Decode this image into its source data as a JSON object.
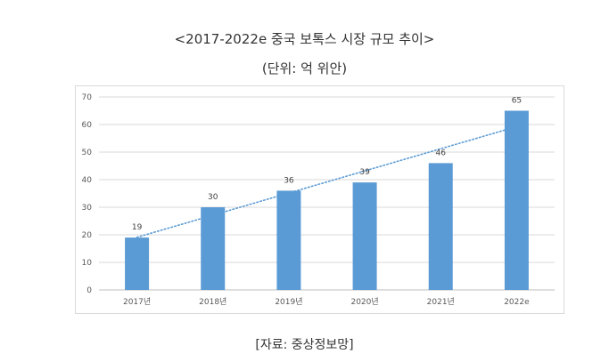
{
  "title": "<2017-2022e 중국 보톡스 시장 규모 추이>",
  "subtitle": "(단위: 억 위안)",
  "source": "[자료: 중상정보망]",
  "colors": {
    "bar": "#5b9bd5",
    "trendline": "#5b9bd5",
    "grid": "#d9d9d9"
  },
  "chart_data": {
    "type": "bar",
    "categories": [
      "2017년",
      "2018년",
      "2019년",
      "2020년",
      "2021년",
      "2022e"
    ],
    "values": [
      19,
      30,
      36,
      39,
      46,
      65
    ],
    "data_labels": [
      "19",
      "30",
      "36",
      "39",
      "46",
      "65"
    ],
    "y_ticks": [
      "0",
      "10",
      "20",
      "30",
      "40",
      "50",
      "60",
      "70"
    ],
    "ylim": [
      0,
      70
    ],
    "grid": true,
    "trendline": "linear-dotted",
    "legend": "none"
  }
}
